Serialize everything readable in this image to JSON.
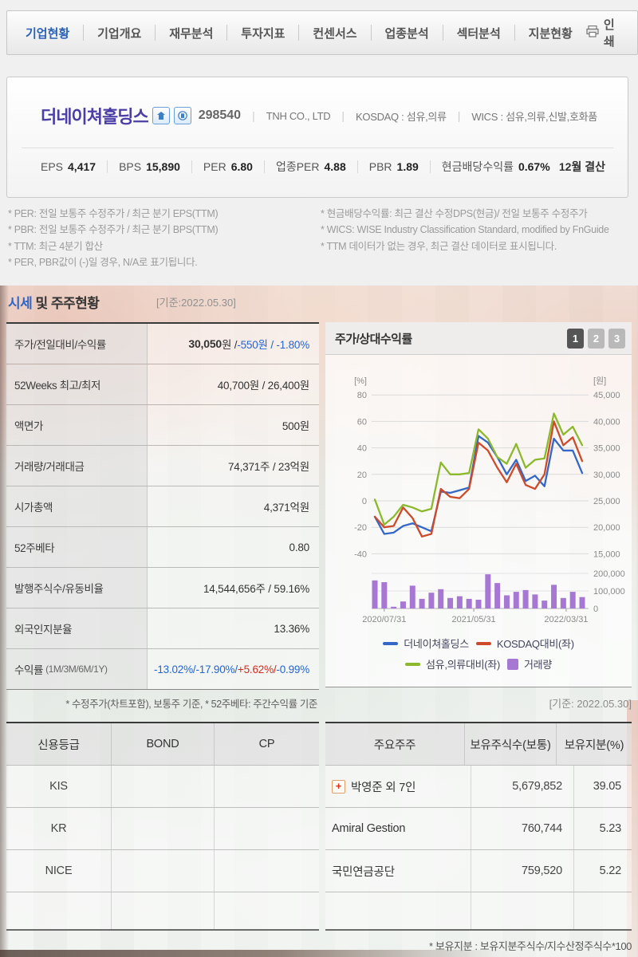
{
  "nav": {
    "tabs": [
      {
        "label": "기업현황"
      },
      {
        "label": "기업개요"
      },
      {
        "label": "재무분석"
      },
      {
        "label": "투자지표"
      },
      {
        "label": "컨센서스"
      },
      {
        "label": "업종분석"
      },
      {
        "label": "섹터분석"
      },
      {
        "label": "지분현황"
      }
    ],
    "print_label": "인쇄"
  },
  "company": {
    "name": "더네이쳐홀딩스",
    "code": "298540",
    "name_en": "TNH CO., LTD",
    "market": "KOSDAQ : 섬유,의류",
    "wics": "WICS : 섬유,의류,신발,호화품",
    "stats": [
      {
        "label": "EPS",
        "value": "4,417"
      },
      {
        "label": "BPS",
        "value": "15,890"
      },
      {
        "label": "PER",
        "value": "6.80"
      },
      {
        "label": "업종PER",
        "value": "4.88"
      },
      {
        "label": "PBR",
        "value": "1.89"
      },
      {
        "label": "현금배당수익률",
        "value": "0.67%"
      }
    ],
    "settlement": "12월 결산"
  },
  "footnotes": {
    "left": [
      "* PER: 전일 보통주 수정주가 / 최근 분기 EPS(TTM)",
      "* PBR: 전일 보통주 수정주가 / 최근 분기 BPS(TTM)",
      "* TTM: 최근 4분기 합산",
      "* PER, PBR값이 (-)일 경우, N/A로 표기됩니다."
    ],
    "right": [
      "* 현금배당수익률: 최근 결산 수정DPS(현금)/ 전일 보통주 수정주가",
      "* WICS: WISE Industry Classification Standard, modified by FnGuide",
      "* TTM 데이터가 없는 경우, 최근 결산 데이터로 표시됩니다."
    ]
  },
  "quote": {
    "title_blue": "시세",
    "title_rest": " 및 주주현황",
    "asof": "[기준:2022.05.30]",
    "price_row": {
      "label": "주가/전일대비/수익률",
      "price_bold": "30,050",
      "price_unit": "원 / ",
      "change": "-550원 / -1.80%"
    },
    "rows": [
      {
        "label": "52Weeks 최고/최저",
        "value": "40,700원 / 26,400원"
      },
      {
        "label": "액면가",
        "value": "500원"
      },
      {
        "label": "거래량/거래대금",
        "value": "74,371주 / 23억원"
      },
      {
        "label": "시가총액",
        "value": "4,371억원"
      },
      {
        "label": "52주베타",
        "value": "0.80"
      },
      {
        "label": "발행주식수/유동비율",
        "value": "14,544,656주 / 59.16%"
      },
      {
        "label": "외국인지분율",
        "value": "13.36%"
      }
    ],
    "return_row": {
      "label": "수익률",
      "label_sub": "(1M/3M/6M/1Y)",
      "p1": "-13.02%/ ",
      "p2": "-17.90%/ ",
      "p3": "+5.62%/",
      "p4": " -0.99%"
    },
    "footnote": "* 수정주가(차트포함), 보통주 기준, * 52주베타: 주간수익률 기준"
  },
  "chart_panel": {
    "title": "주가/상대수익률",
    "buttons": [
      "1",
      "2",
      "3"
    ],
    "asof": "[기준: 2022.05.30]"
  },
  "chart_data": {
    "type": "line+bar",
    "title": "주가/상대수익률",
    "left_axis_label": "[%]",
    "right_axis_label": "[원]",
    "left_ticks": [
      80,
      60,
      40,
      20,
      0,
      -20,
      -40
    ],
    "right_price_ticks": [
      "45,000",
      "40,000",
      "35,000",
      "30,000",
      "25,000",
      "20,000",
      "15,000"
    ],
    "right_volume_ticks": [
      "200,000",
      "100,000",
      "0"
    ],
    "x_labels": [
      "2020/07/31",
      "2021/05/31",
      "2022/03/31"
    ],
    "x_label_idx": [
      1,
      10.5,
      20.3
    ],
    "ylim": [
      -50,
      85
    ],
    "volume_max": 200000,
    "grid": true,
    "legend_position": "bottom",
    "series": [
      {
        "name": "더네이쳐홀딩스",
        "color": "#3467c6",
        "values": [
          -12,
          -25,
          -24,
          -19,
          -17,
          -20,
          -23,
          7,
          6,
          8,
          10,
          49,
          44,
          33,
          20,
          31,
          15,
          19,
          11,
          47,
          38,
          38,
          21
        ]
      },
      {
        "name": "KOSDAQ대비(좌)",
        "color": "#cd4a2a",
        "values": [
          -12,
          -20,
          -19,
          -5,
          -13,
          -27,
          -25,
          9,
          3,
          2,
          9,
          44,
          38,
          25,
          14,
          28,
          12,
          9,
          20,
          60,
          42,
          48,
          30
        ]
      },
      {
        "name": "섬유,의류대비(좌)",
        "color": "#8cb82c",
        "values": [
          1,
          -18,
          -12,
          -3,
          -5,
          -8,
          -6,
          29,
          20,
          20,
          21,
          54,
          47,
          33,
          28,
          43,
          25,
          31,
          32,
          66,
          50,
          56,
          42
        ]
      }
    ],
    "volume": {
      "name": "거래량",
      "color": "#a678d4",
      "values": [
        160000,
        150000,
        10000,
        40000,
        130000,
        55000,
        90000,
        110000,
        60000,
        70000,
        55000,
        50000,
        195000,
        145000,
        75000,
        95000,
        105000,
        80000,
        45000,
        135000,
        60000,
        95000,
        65000
      ]
    }
  },
  "credit_table": {
    "headers": [
      "신용등급",
      "BOND",
      "CP"
    ],
    "rows": [
      {
        "agency": "KIS",
        "bond": "",
        "cp": ""
      },
      {
        "agency": "KR",
        "bond": "",
        "cp": ""
      },
      {
        "agency": "NICE",
        "bond": "",
        "cp": ""
      },
      {
        "agency": "",
        "bond": "",
        "cp": ""
      }
    ]
  },
  "holders_table": {
    "headers": [
      "주요주주",
      "보유주식수(보통)",
      "보유지분(%)"
    ],
    "rows": [
      {
        "name": "박영준 외 7인",
        "shares": "5,679,852",
        "pct": "39.05"
      },
      {
        "name": "Amiral Gestion",
        "shares": "760,744",
        "pct": "5.23"
      },
      {
        "name": "국민연금공단",
        "shares": "759,520",
        "pct": "5.22"
      },
      {
        "name": "",
        "shares": "",
        "pct": ""
      }
    ],
    "plus_label": "+",
    "footnote": "* 보유지분 : 보유지분주식수/지수산정주식수*100"
  }
}
